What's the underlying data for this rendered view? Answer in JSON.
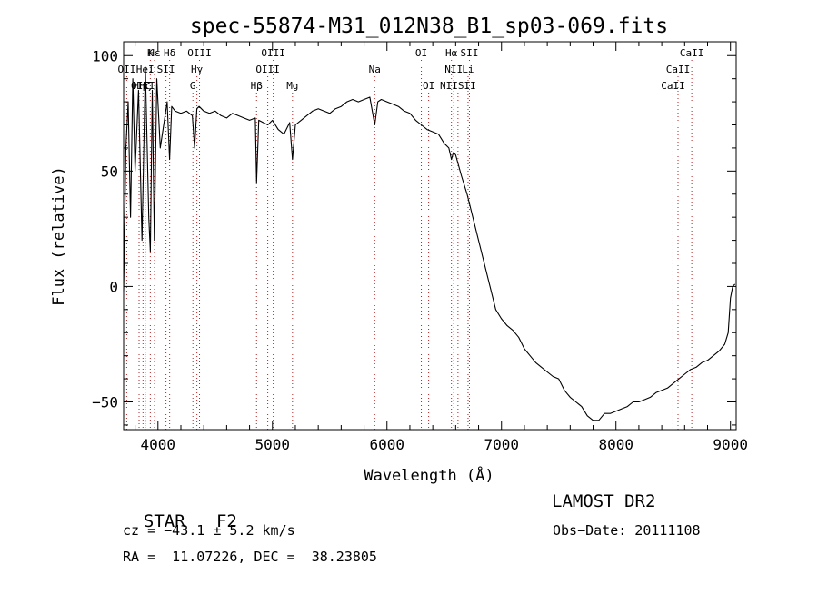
{
  "chart_data": {
    "type": "line",
    "title": "spec-55874-M31_012N38_B1_sp03-069.fits",
    "xlabel": "Wavelength (Å)",
    "ylabel": "Flux (relative)",
    "xlim": [
      3700,
      9050
    ],
    "ylim": [
      -62,
      106
    ],
    "x_ticks": [
      4000,
      5000,
      6000,
      7000,
      8000,
      9000
    ],
    "x_tick_labels": [
      "4000",
      "5000",
      "6000",
      "7000",
      "8000",
      "9000"
    ],
    "y_ticks": [
      -50,
      0,
      50,
      100
    ],
    "y_tick_labels": [
      "−50",
      "0",
      "50",
      "100"
    ],
    "grid": false,
    "series": [
      {
        "x": [
          3700,
          3720,
          3740,
          3760,
          3780,
          3800,
          3830,
          3860,
          3890,
          3920,
          3933,
          3950,
          3968,
          3990,
          4020,
          4050,
          4080,
          4102,
          4120,
          4150,
          4200,
          4250,
          4300,
          4320,
          4340,
          4360,
          4400,
          4450,
          4500,
          4550,
          4600,
          4650,
          4700,
          4750,
          4800,
          4850,
          4861,
          4880,
          4920,
          4960,
          5000,
          5050,
          5100,
          5150,
          5175,
          5200,
          5250,
          5300,
          5350,
          5400,
          5450,
          5500,
          5550,
          5600,
          5650,
          5700,
          5750,
          5800,
          5850,
          5893,
          5920,
          5950,
          6000,
          6050,
          6100,
          6150,
          6200,
          6250,
          6300,
          6350,
          6400,
          6450,
          6500,
          6540,
          6563,
          6580,
          6600,
          6650,
          6700,
          6750,
          6800,
          6850,
          6900,
          6950,
          7000,
          7050,
          7100,
          7150,
          7200,
          7250,
          7300,
          7350,
          7400,
          7450,
          7500,
          7550,
          7600,
          7650,
          7700,
          7750,
          7800,
          7850,
          7900,
          7950,
          8000,
          8050,
          8100,
          8150,
          8200,
          8250,
          8300,
          8350,
          8400,
          8450,
          8500,
          8550,
          8600,
          8650,
          8700,
          8750,
          8800,
          8850,
          8900,
          8950,
          8980,
          9000,
          9020,
          9040
        ],
        "y": [
          -2,
          60,
          80,
          30,
          90,
          50,
          85,
          20,
          95,
          30,
          15,
          85,
          20,
          90,
          60,
          70,
          80,
          55,
          78,
          76,
          75,
          76,
          74,
          60,
          77,
          78,
          76,
          75,
          76,
          74,
          73,
          75,
          74,
          73,
          72,
          73,
          45,
          72,
          71,
          70,
          72,
          68,
          66,
          71,
          55,
          70,
          72,
          74,
          76,
          77,
          76,
          75,
          77,
          78,
          80,
          81,
          80,
          81,
          82,
          70,
          80,
          81,
          80,
          79,
          78,
          76,
          75,
          72,
          70,
          68,
          67,
          66,
          62,
          60,
          55,
          58,
          57,
          48,
          40,
          30,
          20,
          10,
          0,
          -10,
          -14,
          -17,
          -19,
          -22,
          -27,
          -30,
          -33,
          -35,
          -37,
          -39,
          -40,
          -45,
          -48,
          -50,
          -52,
          -56,
          -58,
          -58,
          -55,
          -55,
          -54,
          -53,
          -52,
          -50,
          -50,
          -49,
          -48,
          -46,
          -45,
          -44,
          -42,
          -40,
          -38,
          -36,
          -35,
          -33,
          -32,
          -30,
          -28,
          -25,
          -20,
          -5,
          0,
          1
        ]
      }
    ],
    "line_markers": [
      {
        "label": "Hα",
        "x": 6563,
        "row": 1
      },
      {
        "label": "SII",
        "x": 6720,
        "row": 1
      },
      {
        "label": "NII",
        "x": 6583,
        "row": 2
      },
      {
        "label": "Li",
        "x": 6708,
        "row": 2
      },
      {
        "label": "NIISII",
        "x": 6620,
        "row": 3
      },
      {
        "label": "OI",
        "x": 6300,
        "row": 1
      },
      {
        "label": "OI",
        "x": 6364,
        "row": 3
      },
      {
        "label": "Na",
        "x": 5893,
        "row": 2
      },
      {
        "label": "OIII",
        "x": 5007,
        "row": 1
      },
      {
        "label": "OIII",
        "x": 4959,
        "row": 2
      },
      {
        "label": "Hβ",
        "x": 4861,
        "row": 3
      },
      {
        "label": "Mg",
        "x": 5175,
        "row": 3
      },
      {
        "label": "OIII",
        "x": 4363,
        "row": 1
      },
      {
        "label": "Hγ",
        "x": 4340,
        "row": 2
      },
      {
        "label": "G",
        "x": 4305,
        "row": 3
      },
      {
        "label": "Hδ",
        "x": 4102,
        "row": 1
      },
      {
        "label": "K",
        "x": 3933,
        "row": 1
      },
      {
        "label": "Hε",
        "x": 3970,
        "row": 1
      },
      {
        "label": "OII",
        "x": 3727,
        "row": 2
      },
      {
        "label": "HeI",
        "x": 3888,
        "row": 2
      },
      {
        "label": "SII",
        "x": 4070,
        "row": 2
      },
      {
        "label": "OIII",
        "x": 3869,
        "row": 3
      },
      {
        "label": "Hζ",
        "x": 3889,
        "row": 3
      },
      {
        "label": "Hη",
        "x": 3835,
        "row": 3
      },
      {
        "label": "CaII",
        "x": 8662,
        "row": 1
      },
      {
        "label": "CaII",
        "x": 8542,
        "row": 2
      },
      {
        "label": "CaII",
        "x": 8498,
        "row": 3
      }
    ]
  },
  "info": {
    "object_class": "STAR",
    "subclass": "F2",
    "survey": "LAMOST DR2",
    "redshift": "cz = −43.1 ± 5.2 km/s",
    "obs_date": "Obs−Date: 20111108",
    "coords": "RA =  11.07226, DEC =  38.23805"
  }
}
